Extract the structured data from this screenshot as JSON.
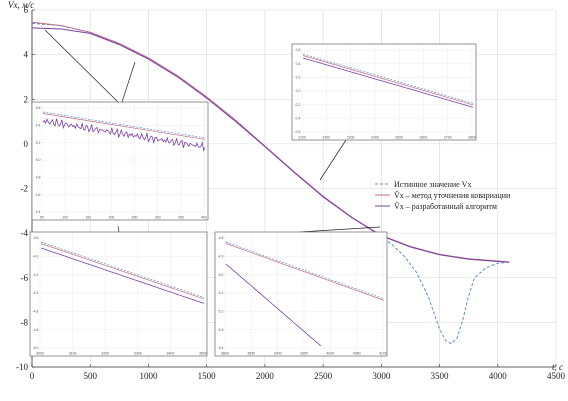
{
  "chart_data": {
    "type": "line",
    "title": "",
    "xlabel": "t, c",
    "ylabel": "Vx, м/с",
    "xlim": [
      0,
      4500
    ],
    "ylim": [
      -10,
      6
    ],
    "xticks": [
      0,
      500,
      1000,
      1500,
      2000,
      2500,
      3000,
      3500,
      4000,
      4500
    ],
    "yticks": [
      -10,
      -8,
      -6,
      -4,
      -2,
      0,
      2,
      4,
      6
    ],
    "grid": true,
    "legend_position": "center-right",
    "series": [
      {
        "name": "Истинное значение Vx",
        "color": "#5b8fc9",
        "style": "dashed",
        "x": [
          0,
          250,
          500,
          750,
          1000,
          1250,
          1500,
          1750,
          2000,
          2250,
          2500,
          2750,
          3000,
          3100,
          3200,
          3300,
          3400,
          3500,
          3550,
          3600,
          3650,
          3700,
          3750,
          3800,
          3900,
          4000,
          4100
        ],
        "y": [
          5.4,
          5.3,
          5.0,
          4.5,
          3.85,
          3.05,
          2.1,
          1.05,
          -0.1,
          -1.25,
          -2.35,
          -3.3,
          -4.15,
          -4.55,
          -5.05,
          -5.75,
          -6.8,
          -8.3,
          -8.8,
          -8.95,
          -8.7,
          -7.9,
          -6.8,
          -6.0,
          -5.55,
          -5.35,
          -5.3
        ]
      },
      {
        "name": "V̂x – метод уточнения ковариации",
        "color": "#c06c84",
        "style": "solid",
        "x": [
          0,
          250,
          500,
          750,
          1000,
          1250,
          1500,
          1750,
          2000,
          2250,
          2500,
          2750,
          3000,
          3250,
          3500,
          3750,
          4000,
          4100
        ],
        "y": [
          5.45,
          5.3,
          5.0,
          4.5,
          3.85,
          3.05,
          2.1,
          1.05,
          -0.1,
          -1.25,
          -2.35,
          -3.3,
          -4.1,
          -4.6,
          -4.95,
          -5.15,
          -5.25,
          -5.3
        ]
      },
      {
        "name": "V̂x – разработанный алгоритм",
        "color": "#7a3fa8",
        "style": "solid",
        "x": [
          0,
          250,
          500,
          750,
          1000,
          1250,
          1500,
          1750,
          2000,
          2250,
          2500,
          2750,
          3000,
          3250,
          3500,
          3750,
          4000,
          4100
        ],
        "y": [
          5.2,
          5.15,
          4.95,
          4.45,
          3.8,
          3.0,
          2.05,
          1.0,
          -0.12,
          -1.27,
          -2.37,
          -3.32,
          -4.12,
          -4.62,
          -4.97,
          -5.17,
          -5.27,
          -5.3
        ]
      }
    ],
    "insets": [
      {
        "id": "inset-early",
        "xticks": [
          "50",
          "100",
          "150",
          "200",
          "250",
          "300",
          "350",
          "400"
        ],
        "yticks": [
          "5.6",
          "5.4",
          "5.2",
          "5.0",
          "4.8",
          "4.6",
          "4.4"
        ]
      },
      {
        "id": "inset-mid",
        "xticks": [
          "2100",
          "2200",
          "2300",
          "2400",
          "2500",
          "2600",
          "2700",
          "2800"
        ],
        "yticks": [
          "0.6",
          "0.4",
          "0.2",
          "0.0",
          "-0.2",
          "-0.4",
          "-0.6"
        ]
      },
      {
        "id": "inset-late1",
        "xticks": [
          "3000",
          "3100",
          "3200",
          "3300",
          "3400",
          "3500"
        ],
        "yticks": [
          "-3.8",
          "-4.0",
          "-4.2",
          "-4.4",
          "-4.6",
          "-4.8",
          "-5.0"
        ]
      },
      {
        "id": "inset-late2",
        "xticks": [
          "3800",
          "3850",
          "3900",
          "3950",
          "4000",
          "4050",
          "4100"
        ],
        "yticks": [
          "-4.8",
          "-4.9",
          "-5.0",
          "-5.1",
          "-5.2",
          "-5.3",
          "-5.4"
        ]
      }
    ]
  }
}
